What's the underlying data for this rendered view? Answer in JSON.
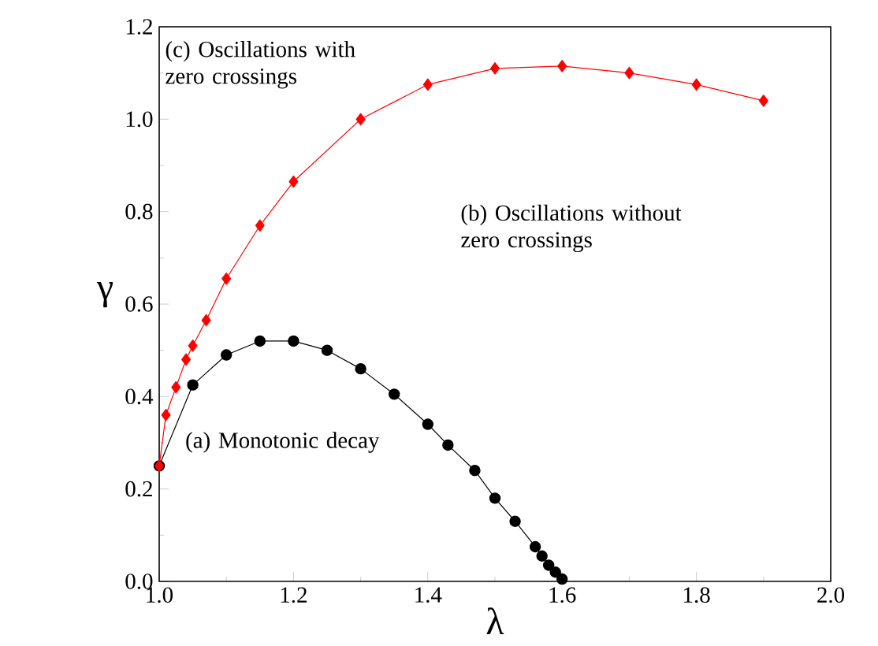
{
  "chart_data": {
    "type": "line",
    "xlabel": "λ",
    "ylabel": "γ",
    "line_style": "solid",
    "xlim": [
      1.0,
      2.0
    ],
    "ylim": [
      0.0,
      1.2
    ],
    "xticks": [
      {
        "value": 1.0,
        "label": "1.0"
      },
      {
        "value": 1.2,
        "label": "1.2"
      },
      {
        "value": 1.4,
        "label": "1.4"
      },
      {
        "value": 1.6,
        "label": "1.6"
      },
      {
        "value": 1.8,
        "label": "1.8"
      },
      {
        "value": 2.0,
        "label": "2.0"
      }
    ],
    "yticks": [
      {
        "value": 0.0,
        "label": "0.0"
      },
      {
        "value": 0.2,
        "label": "0.2"
      },
      {
        "value": 0.4,
        "label": "0.4"
      },
      {
        "value": 0.6,
        "label": "0.6"
      },
      {
        "value": 0.8,
        "label": "0.8"
      },
      {
        "value": 1.0,
        "label": "1.0"
      },
      {
        "value": 1.2,
        "label": "1.2"
      }
    ],
    "series": [
      {
        "color": "#000000",
        "marker": "circle",
        "x": [
          1.0,
          1.05,
          1.1,
          1.15,
          1.2,
          1.25,
          1.3,
          1.35,
          1.4,
          1.43,
          1.47,
          1.5,
          1.53,
          1.56,
          1.57,
          1.58,
          1.59,
          1.6
        ],
        "values": [
          0.25,
          0.425,
          0.49,
          0.52,
          0.52,
          0.5,
          0.46,
          0.405,
          0.34,
          0.295,
          0.24,
          0.18,
          0.13,
          0.075,
          0.055,
          0.035,
          0.02,
          0.005
        ]
      },
      {
        "color": "#ff0000",
        "marker": "diamond",
        "x": [
          1.0,
          1.01,
          1.025,
          1.04,
          1.05,
          1.07,
          1.1,
          1.15,
          1.2,
          1.3,
          1.4,
          1.5,
          1.6,
          1.7,
          1.8,
          1.9
        ],
        "values": [
          0.25,
          0.36,
          0.42,
          0.48,
          0.51,
          0.565,
          0.655,
          0.77,
          0.865,
          1.0,
          1.075,
          1.11,
          1.115,
          1.1,
          1.075,
          1.04
        ]
      }
    ],
    "annotations": [
      "(c) Oscillations with zero crossings",
      "(b) Oscillations without zero crossings",
      "(a) Monotonic decay"
    ]
  }
}
